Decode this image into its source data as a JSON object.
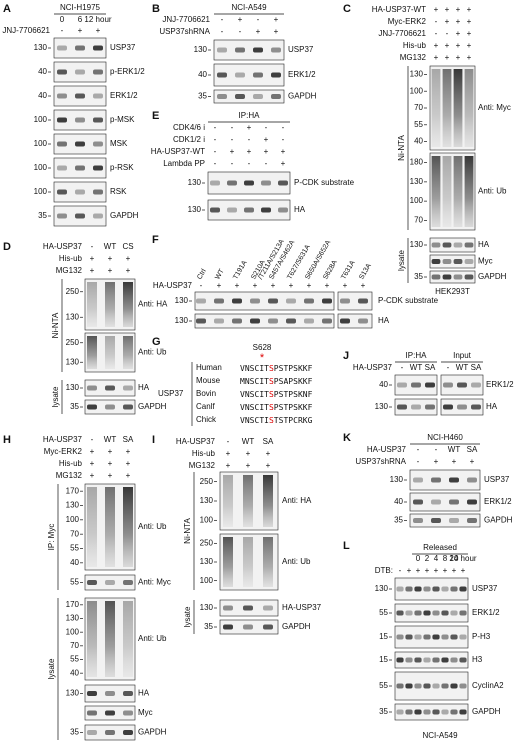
{
  "panels": {
    "panel_a": {
      "letter": "A",
      "title": "NCI-H1975",
      "time_labels": [
        "0",
        "6",
        "12 hour"
      ],
      "rows": [
        {
          "label": "JNJ-7706621",
          "signs": [
            "-",
            "+",
            "+"
          ]
        }
      ],
      "sections": [
        {
          "blots": [
            {
              "markers": [
                130
              ],
              "name": "USP37"
            },
            {
              "markers": [
                40
              ],
              "name": "p-ERK1/2"
            },
            {
              "markers": [
                40
              ],
              "name": "ERK1/2"
            },
            {
              "markers": [
                100
              ],
              "name": "p-MSK"
            },
            {
              "markers": [
                100
              ],
              "name": "MSK"
            },
            {
              "markers": [
                100
              ],
              "name": "p-RSK"
            },
            {
              "markers": [
                100
              ],
              "name": "RSK"
            },
            {
              "markers": [
                35
              ],
              "name": "GAPDH"
            }
          ]
        }
      ]
    },
    "panel_b": {
      "letter": "B",
      "title": "NCI-A549",
      "rows": [
        {
          "label": "JNJ-7706621",
          "signs": [
            "-",
            "+",
            "-",
            "+"
          ]
        },
        {
          "label": "USP37shRNA",
          "signs": [
            "-",
            "-",
            "+",
            "+"
          ]
        }
      ],
      "sections": [
        {
          "blots": [
            {
              "markers": [
                130
              ],
              "name": "USP37"
            },
            {
              "markers": [
                40
              ],
              "name": "ERK1/2"
            },
            {
              "markers": [
                35
              ],
              "name": "GAPDH"
            }
          ]
        }
      ]
    },
    "panel_c": {
      "letter": "C",
      "rows": [
        {
          "label": "HA-USP37-WT",
          "signs": [
            "+",
            "+",
            "+",
            "+"
          ]
        },
        {
          "label": "Myc-ERK2",
          "signs": [
            "-",
            "+",
            "+",
            "+"
          ]
        },
        {
          "label": "JNJ-7706621",
          "signs": [
            "-",
            "-",
            "+",
            "+"
          ]
        },
        {
          "label": "His-ub",
          "signs": [
            "+",
            "+",
            "+",
            "+"
          ]
        },
        {
          "label": "MG132",
          "signs": [
            "+",
            "+",
            "+",
            "+"
          ]
        }
      ],
      "sections": [
        {
          "label": "Ni-NTA",
          "blots": [
            {
              "markers": [
                130,
                100,
                70,
                55,
                40
              ],
              "name": "Anti: Myc"
            },
            {
              "markers": [
                180,
                130,
                100,
                70
              ],
              "name": "Anti: Ub"
            }
          ]
        },
        {
          "label": "lysate",
          "blots": [
            {
              "markers": [
                130
              ],
              "name": "HA"
            },
            {
              "markers": [],
              "name": "Myc"
            },
            {
              "markers": [
                35
              ],
              "name": "GAPDH"
            }
          ]
        }
      ],
      "footer": "HEK293T"
    },
    "panel_d": {
      "letter": "D",
      "rows": [
        {
          "label": "HA-USP37",
          "signs": [
            "-",
            "WT",
            "CS"
          ]
        },
        {
          "label": "His-ub",
          "signs": [
            "+",
            "+",
            "+"
          ]
        },
        {
          "label": "MG132",
          "signs": [
            "+",
            "+",
            "+"
          ]
        }
      ],
      "sections": [
        {
          "label": "Ni-NTA",
          "blots": [
            {
              "markers": [
                250,
                130
              ],
              "name": "Anti: HA"
            },
            {
              "markers": [
                250,
                130
              ],
              "name": "Anti: Ub"
            }
          ]
        },
        {
          "label": "lysate",
          "blots": [
            {
              "markers": [
                130
              ],
              "name": "HA"
            },
            {
              "markers": [
                35
              ],
              "name": "GAPDH"
            }
          ]
        }
      ]
    },
    "panel_e": {
      "letter": "E",
      "title": "IP:HA",
      "rows": [
        {
          "label": "CDK4/6 i",
          "signs": [
            "-",
            "-",
            "+",
            "-",
            "-"
          ]
        },
        {
          "label": "CDK1/2 i",
          "signs": [
            "-",
            "-",
            "-",
            "+",
            "-"
          ]
        },
        {
          "label": "HA-USP37-WT",
          "signs": [
            "-",
            "+",
            "+",
            "+",
            "+"
          ]
        },
        {
          "label": "Lambda PP",
          "signs": [
            "-",
            "-",
            "-",
            "-",
            "+"
          ]
        }
      ],
      "sections": [
        {
          "blots": [
            {
              "markers": [
                130
              ],
              "name": "P-CDK substrate"
            },
            {
              "markers": [
                130
              ],
              "name": "HA"
            }
          ]
        }
      ]
    },
    "panel_f": {
      "letter": "F",
      "lane_labels": [
        [
          "Ctrl"
        ],
        [
          "WT"
        ],
        [
          "T191A"
        ],
        [
          "S210A",
          "/T211A/S213A"
        ],
        [
          "S457A/S462A"
        ],
        [
          "T627/S631A"
        ],
        [
          "S650A/S652A"
        ],
        [
          "S628A"
        ],
        [
          "T631A"
        ],
        [
          "S13A"
        ]
      ],
      "rows": [
        {
          "label": "HA-USP37",
          "signs": [
            "-",
            "+",
            "+",
            "+",
            "+",
            "+",
            "+",
            "+",
            "+",
            "+"
          ]
        }
      ],
      "sections": [
        {
          "blots": [
            {
              "markers": [
                130
              ],
              "name": "P-CDK substrate"
            },
            {
              "markers": [
                130
              ],
              "name": "HA"
            }
          ]
        }
      ]
    },
    "panel_g": {
      "letter": "G",
      "site": "S628",
      "star": "*",
      "protein": "USP37",
      "species": [
        {
          "name": "Human",
          "sequence": "VNSCITSPSTPSKKF"
        },
        {
          "name": "Mouse",
          "sequence": "MNSCITSPSAPSKKF"
        },
        {
          "name": "Bovin",
          "sequence": "VNSCITSPSTPSKNF"
        },
        {
          "name": "Canlf",
          "sequence": "VNSCITSPSTPSKKF"
        },
        {
          "name": "Chick",
          "sequence": "VNSCTISTSTPCRKG"
        }
      ]
    },
    "panel_h": {
      "letter": "H",
      "rows": [
        {
          "label": "HA-USP37",
          "signs": [
            "-",
            "WT",
            "SA"
          ]
        },
        {
          "label": "Myc-ERK2",
          "signs": [
            "+",
            "+",
            "+"
          ]
        },
        {
          "label": "His-ub",
          "signs": [
            "+",
            "+",
            "+"
          ]
        },
        {
          "label": "MG132",
          "signs": [
            "+",
            "+",
            "+"
          ]
        }
      ],
      "sections": [
        {
          "label": "IP: Myc",
          "blots": [
            {
              "markers": [
                170,
                130,
                100,
                70,
                55,
                40
              ],
              "name": "Anti: Ub"
            },
            {
              "markers": [
                55
              ],
              "name": "Anti: Myc"
            }
          ]
        },
        {
          "label": "lysate",
          "blots": [
            {
              "markers": [
                170,
                130,
                100,
                70,
                55,
                40
              ],
              "name": "Anti: Ub"
            },
            {
              "markers": [
                130
              ],
              "name": "HA"
            },
            {
              "markers": [],
              "name": "Myc"
            },
            {
              "markers": [
                35
              ],
              "name": "GAPDH"
            }
          ]
        }
      ]
    },
    "panel_i": {
      "letter": "I",
      "rows": [
        {
          "label": "HA-USP37",
          "signs": [
            "-",
            "WT",
            "SA"
          ]
        },
        {
          "label": "His-ub",
          "signs": [
            "+",
            "+",
            "+"
          ]
        },
        {
          "label": "MG132",
          "signs": [
            "+",
            "+",
            "+"
          ]
        }
      ],
      "sections": [
        {
          "label": "Ni-NTA",
          "blots": [
            {
              "markers": [
                250,
                130,
                100
              ],
              "name": "Anti: HA"
            },
            {
              "markers": [
                250,
                130,
                100
              ],
              "name": "Anti: Ub"
            }
          ]
        },
        {
          "label": "lysate",
          "blots": [
            {
              "markers": [
                130
              ],
              "name": "HA-USP37"
            },
            {
              "markers": [
                35
              ],
              "name": "GAPDH"
            }
          ]
        }
      ]
    },
    "panel_j": {
      "letter": "J",
      "groups": [
        "IP:HA",
        "Input"
      ],
      "rows": [
        {
          "label": "HA-USP37",
          "signs": [
            "-",
            "WT",
            "SA",
            "-",
            "WT",
            "SA"
          ]
        }
      ],
      "sections": [
        {
          "blots": [
            {
              "markers": [
                40
              ],
              "name": "ERK1/2"
            },
            {
              "markers": [
                130
              ],
              "name": "HA"
            }
          ]
        }
      ]
    },
    "panel_k": {
      "letter": "K",
      "title": "NCI-H460",
      "rows": [
        {
          "label": "HA-USP37",
          "signs": [
            "-",
            "-",
            "WT",
            "SA"
          ]
        },
        {
          "label": "USP37shRNA",
          "signs": [
            "-",
            "+",
            "+",
            "+"
          ]
        }
      ],
      "sections": [
        {
          "blots": [
            {
              "markers": [
                130
              ],
              "name": "USP37"
            },
            {
              "markers": [
                40
              ],
              "name": "ERK1/2"
            },
            {
              "markers": [
                35
              ],
              "name": "GAPDH"
            }
          ]
        }
      ]
    },
    "panel_l": {
      "letter": "L",
      "title": "Released",
      "time_labels": [
        "0",
        "2",
        "4",
        "8",
        "10",
        "24 hour"
      ],
      "rows": [
        {
          "label": "DTB:",
          "signs": [
            "-",
            "+",
            "+",
            "+",
            "+",
            "+",
            "+",
            "+"
          ]
        }
      ],
      "sections": [
        {
          "blots": [
            {
              "markers": [
                130
              ],
              "name": "USP37"
            },
            {
              "markers": [
                55
              ],
              "name": "ERK1/2"
            },
            {
              "markers": [
                15
              ],
              "name": "P-H3"
            },
            {
              "markers": [
                15
              ],
              "name": "H3"
            },
            {
              "markers": [
                55
              ],
              "name": "CyclinA2"
            },
            {
              "markers": [
                35
              ],
              "name": "GAPDH"
            }
          ]
        }
      ],
      "footer": "NCI-A549"
    }
  }
}
